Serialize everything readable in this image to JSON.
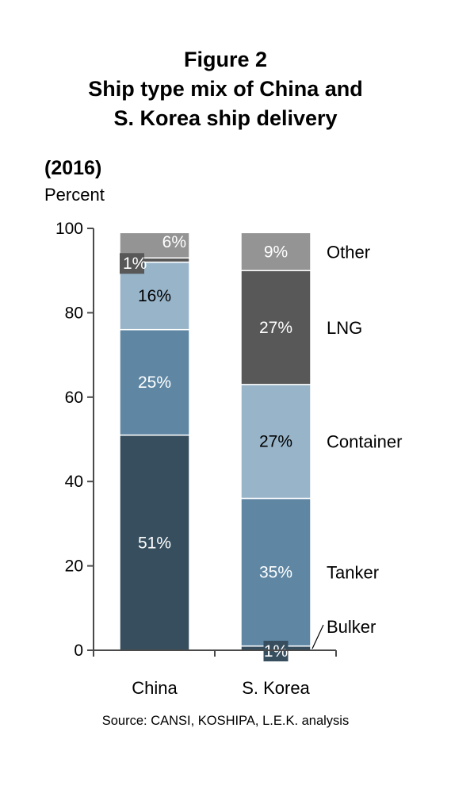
{
  "title_lines": [
    "Figure 2",
    "Ship type mix of China and",
    "S. Korea ship delivery"
  ],
  "subtitle": "(2016)",
  "unit_label": "Percent",
  "source": "Source: CANSI, KOSHIPA, L.E.K. analysis",
  "colors": {
    "Bulker": "#364e5e",
    "Tanker": "#5f87a4",
    "Container": "#98b4c9",
    "LNG": "#585858",
    "Other": "#949494"
  },
  "chart_data": {
    "type": "bar",
    "stacked": true,
    "categories": [
      "China",
      "S. Korea"
    ],
    "series": [
      {
        "name": "Bulker",
        "values": [
          51,
          1
        ],
        "labels": [
          "51%",
          "1%"
        ]
      },
      {
        "name": "Tanker",
        "values": [
          25,
          35
        ],
        "labels": [
          "25%",
          "35%"
        ]
      },
      {
        "name": "Container",
        "values": [
          16,
          27
        ],
        "labels": [
          "16%",
          "27%"
        ]
      },
      {
        "name": "LNG",
        "values": [
          1,
          27
        ],
        "labels": [
          "1%",
          "27%"
        ]
      },
      {
        "name": "Other",
        "values": [
          6,
          9
        ],
        "labels": [
          "6%",
          "9%"
        ]
      }
    ],
    "ylim": [
      0,
      100
    ],
    "yticks": [
      0,
      20,
      40,
      60,
      80,
      100
    ],
    "grid": false,
    "legend": "right, aligned to S. Korea segments"
  }
}
